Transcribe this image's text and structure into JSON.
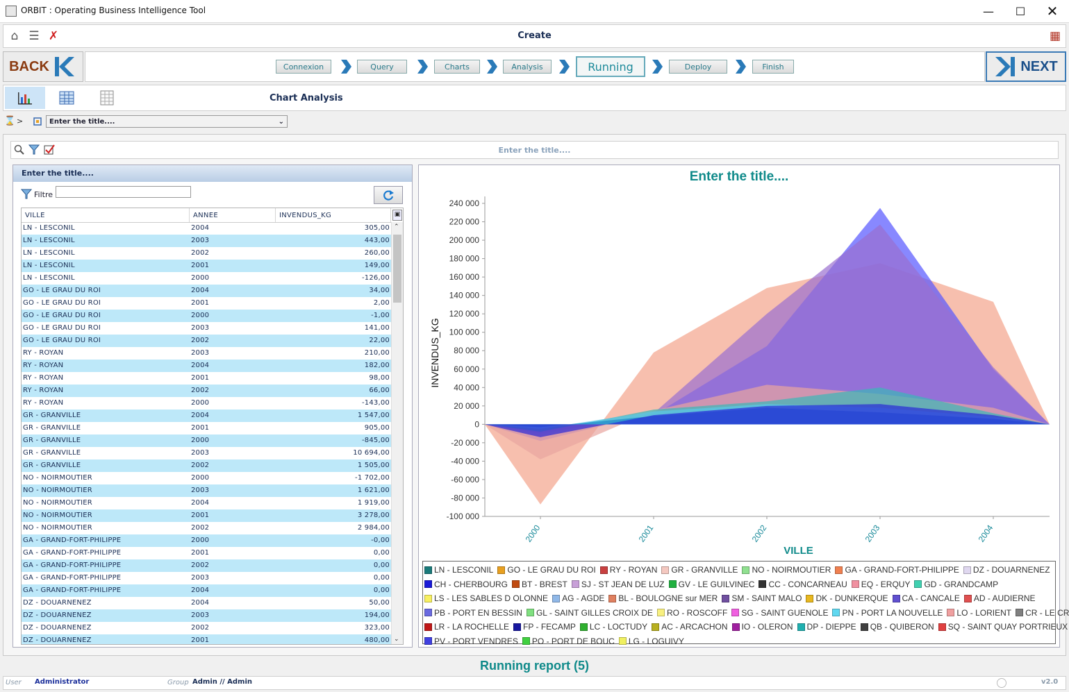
{
  "window": {
    "title": "ORBIT : Operating Business Intelligence Tool"
  },
  "toolbar": {
    "title": "Create"
  },
  "wizard": {
    "back_label": "BACK",
    "next_label": "NEXT",
    "steps": [
      "Connexion",
      "Query",
      "Charts",
      "Analysis",
      "Running",
      "Deploy",
      "Finish"
    ],
    "active_step": "Running"
  },
  "analysis": {
    "title": "Chart Analysis"
  },
  "selector": {
    "value": "Enter the title...."
  },
  "search": {
    "placeholder": "Enter the title...."
  },
  "table_panel": {
    "title": "Enter the title....",
    "filter_label": "Filtre",
    "columns": [
      "VILLE",
      "ANNEE",
      "INVENDUS_KG"
    ],
    "rows": [
      [
        "LN - LESCONIL",
        "2004",
        "305,00"
      ],
      [
        "LN - LESCONIL",
        "2003",
        "443,00"
      ],
      [
        "LN - LESCONIL",
        "2002",
        "260,00"
      ],
      [
        "LN - LESCONIL",
        "2001",
        "149,00"
      ],
      [
        "LN - LESCONIL",
        "2000",
        "-126,00"
      ],
      [
        "GO - LE GRAU DU ROI",
        "2004",
        "34,00"
      ],
      [
        "GO - LE GRAU DU ROI",
        "2001",
        "2,00"
      ],
      [
        "GO - LE GRAU DU ROI",
        "2000",
        "-1,00"
      ],
      [
        "GO - LE GRAU DU ROI",
        "2003",
        "141,00"
      ],
      [
        "GO - LE GRAU DU ROI",
        "2002",
        "22,00"
      ],
      [
        "RY - ROYAN",
        "2003",
        "210,00"
      ],
      [
        "RY - ROYAN",
        "2004",
        "182,00"
      ],
      [
        "RY - ROYAN",
        "2001",
        "98,00"
      ],
      [
        "RY - ROYAN",
        "2002",
        "66,00"
      ],
      [
        "RY - ROYAN",
        "2000",
        "-143,00"
      ],
      [
        "GR - GRANVILLE",
        "2004",
        "1 547,00"
      ],
      [
        "GR - GRANVILLE",
        "2001",
        "905,00"
      ],
      [
        "GR - GRANVILLE",
        "2000",
        "-845,00"
      ],
      [
        "GR - GRANVILLE",
        "2003",
        "10 694,00"
      ],
      [
        "GR - GRANVILLE",
        "2002",
        "1 505,00"
      ],
      [
        "NO - NOIRMOUTIER",
        "2000",
        "-1 702,00"
      ],
      [
        "NO - NOIRMOUTIER",
        "2003",
        "1 621,00"
      ],
      [
        "NO - NOIRMOUTIER",
        "2004",
        "1 919,00"
      ],
      [
        "NO - NOIRMOUTIER",
        "2001",
        "3 278,00"
      ],
      [
        "NO - NOIRMOUTIER",
        "2002",
        "2 984,00"
      ],
      [
        "GA - GRAND-FORT-PHILIPPE",
        "2000",
        "-0,00"
      ],
      [
        "GA - GRAND-FORT-PHILIPPE",
        "2001",
        "0,00"
      ],
      [
        "GA - GRAND-FORT-PHILIPPE",
        "2002",
        "0,00"
      ],
      [
        "GA - GRAND-FORT-PHILIPPE",
        "2003",
        "0,00"
      ],
      [
        "GA - GRAND-FORT-PHILIPPE",
        "2004",
        "0,00"
      ],
      [
        "DZ - DOUARNENEZ",
        "2004",
        "50,00"
      ],
      [
        "DZ - DOUARNENEZ",
        "2003",
        "194,00"
      ],
      [
        "DZ - DOUARNENEZ",
        "2002",
        "323,00"
      ],
      [
        "DZ - DOUARNENEZ",
        "2001",
        "480,00"
      ]
    ]
  },
  "chart_data": {
    "type": "area",
    "title": "Enter the title....",
    "xlabel": "VILLE",
    "ylabel": "INVENDUS_KG",
    "categories": [
      "2000",
      "2001",
      "2002",
      "2003",
      "2004"
    ],
    "ylim": [
      -100000,
      240000
    ],
    "yticks": [
      240000,
      220000,
      200000,
      180000,
      160000,
      140000,
      120000,
      100000,
      80000,
      60000,
      40000,
      20000,
      0,
      -20000,
      -40000,
      -60000,
      -80000,
      -100000
    ],
    "ytick_labels": [
      "240 000",
      "220 000",
      "200 000",
      "180 000",
      "160 000",
      "140 000",
      "120 000",
      "100 000",
      "80 000",
      "60 000",
      "40 000",
      "20 000",
      "0",
      "-20 000",
      "-40 000",
      "-60 000",
      "-80 000",
      "-100 000"
    ],
    "series": [
      {
        "color": "#f4a48c",
        "values": [
          -87000,
          78000,
          148000,
          175000,
          133000
        ]
      },
      {
        "color": "#5555ff",
        "values": [
          -10000,
          10000,
          85000,
          235000,
          60000
        ]
      },
      {
        "color": "#9a6fd0",
        "values": [
          -18000,
          12000,
          120000,
          217000,
          62000
        ]
      },
      {
        "color": "#e8a5a0",
        "values": [
          -38000,
          15000,
          43000,
          33000,
          18000
        ]
      },
      {
        "color": "#3ab8b8",
        "values": [
          -8000,
          16000,
          25000,
          40000,
          12000
        ]
      },
      {
        "color": "#5ac8e8",
        "values": [
          -5000,
          14000,
          22000,
          18000,
          8000
        ]
      },
      {
        "color": "#1e88c8",
        "values": [
          -3000,
          9000,
          18000,
          13000,
          6000
        ]
      },
      {
        "color": "#2a2ad8",
        "values": [
          -14000,
          10000,
          20000,
          22000,
          10000
        ]
      }
    ],
    "x_range": [
      2000,
      2004
    ],
    "legend_position": "bottom",
    "legend": [
      [
        [
          "LN - LESCONIL",
          "#1a7a7a"
        ],
        [
          "GO - LE GRAU DU ROI",
          "#e8a020"
        ],
        [
          "RY - ROYAN",
          "#c84040"
        ],
        [
          "GR - GRANVILLE",
          "#f4c8c0"
        ],
        [
          "NO - NOIRMOUTIER",
          "#90e090"
        ],
        [
          "GA - GRAND-FORT-PHILIPPE",
          "#f08050"
        ],
        [
          "DZ - DOUARNENEZ",
          "#e0d8f0"
        ]
      ],
      [
        [
          "CH - CHERBOURG",
          "#1a1ad8"
        ],
        [
          "BT - BREST",
          "#c04a10"
        ],
        [
          "SJ - ST JEAN DE LUZ",
          "#c8a0d8"
        ],
        [
          "GV - LE GUILVINEC",
          "#20b040"
        ],
        [
          "CC - CONCARNEAU",
          "#333333"
        ],
        [
          "EQ - ERQUY",
          "#f090a0"
        ],
        [
          "GD - GRANDCAMP",
          "#40d0b0"
        ]
      ],
      [
        [
          "LS - LES SABLES D OLONNE",
          "#f8f060"
        ],
        [
          "AG - AGDE",
          "#90b8e8"
        ],
        [
          "BL - BOULOGNE sur MER",
          "#e08060"
        ],
        [
          "SM - SAINT MALO",
          "#7050a0"
        ],
        [
          "DK - DUNKERQUE",
          "#e8b820"
        ],
        [
          "CA - CANCALE",
          "#6050d0"
        ],
        [
          "AD - AUDIERNE",
          "#e05050"
        ]
      ],
      [
        [
          "PB - PORT EN BESSIN",
          "#6a6ae0"
        ],
        [
          "GL - SAINT GILLES CROIX DE",
          "#80e080"
        ],
        [
          "RO - ROSCOFF",
          "#f8f080"
        ],
        [
          "SG - SAINT GUENOLE",
          "#f060e0"
        ],
        [
          "PN - PORT LA NOUVELLE",
          "#60d8f0"
        ],
        [
          "LO - LORIENT",
          "#f0a0a0"
        ],
        [
          "CR - LE CROISIC",
          "#808080"
        ]
      ],
      [
        [
          "LR - LA ROCHELLE",
          "#c01818"
        ],
        [
          "FP - FECAMP",
          "#1818a0"
        ],
        [
          "LC - LOCTUDY",
          "#30b030"
        ],
        [
          "AC - ARCACHON",
          "#b8b020"
        ],
        [
          "IO - OLERON",
          "#a020a0"
        ],
        [
          "DP - DIEPPE",
          "#20b0b0"
        ],
        [
          "QB - QUIBERON",
          "#404040"
        ],
        [
          "SQ - SAINT QUAY PORTRIEUX",
          "#e04040"
        ]
      ],
      [
        [
          "PV - PORT VENDRES",
          "#4040e0"
        ],
        [
          "PO - PORT DE BOUC",
          "#40d040"
        ],
        [
          "LG - LOGUIVY",
          "#f0f060"
        ]
      ]
    ]
  },
  "footer": {
    "running_report": "Running report (5)"
  },
  "status": {
    "user_caption": "User",
    "user": "Administrator",
    "group_caption": "Group",
    "group": "Admin // Admin",
    "version": "v2.0"
  }
}
